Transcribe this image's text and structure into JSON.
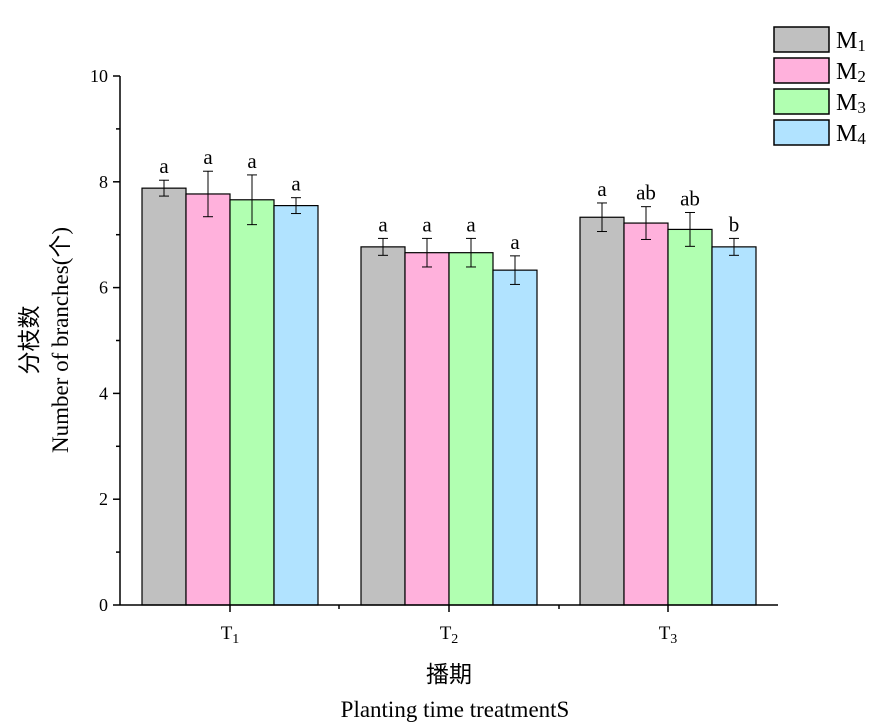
{
  "chart_data": {
    "type": "bar",
    "categories": [
      {
        "base": "T",
        "sub": "1"
      },
      {
        "base": "T",
        "sub": "2"
      },
      {
        "base": "T",
        "sub": "3"
      }
    ],
    "series": [
      {
        "name_base": "M",
        "name_sub": "1",
        "color": "#c0c0c0",
        "values": [
          7.88,
          6.77,
          7.33
        ],
        "errors": [
          0.15,
          0.16,
          0.27
        ],
        "sig": [
          "a",
          "a",
          "a"
        ]
      },
      {
        "name_base": "M",
        "name_sub": "2",
        "color": "#ffb1dc",
        "values": [
          7.77,
          6.66,
          7.22
        ],
        "errors": [
          0.43,
          0.27,
          0.31
        ],
        "sig": [
          "a",
          "a",
          "ab"
        ]
      },
      {
        "name_base": "M",
        "name_sub": "3",
        "color": "#b1ffb1",
        "values": [
          7.66,
          6.66,
          7.1
        ],
        "errors": [
          0.47,
          0.27,
          0.32
        ],
        "sig": [
          "a",
          "a",
          "ab"
        ]
      },
      {
        "name_base": "M",
        "name_sub": "4",
        "color": "#b1e3ff",
        "values": [
          7.55,
          6.33,
          6.77
        ],
        "errors": [
          0.15,
          0.27,
          0.16
        ],
        "sig": [
          "a",
          "a",
          "b"
        ]
      }
    ],
    "ylim": [
      0,
      10
    ],
    "yticks": [
      "0",
      "2",
      "4",
      "6",
      "8",
      "10"
    ],
    "ylabel_cn": "分枝数",
    "ylabel_en": "Number of branches(个)",
    "xlabel_cn": "播期",
    "xlabel_en": "Planting time treatmentS",
    "legend_position": "top-right",
    "grid": false
  }
}
